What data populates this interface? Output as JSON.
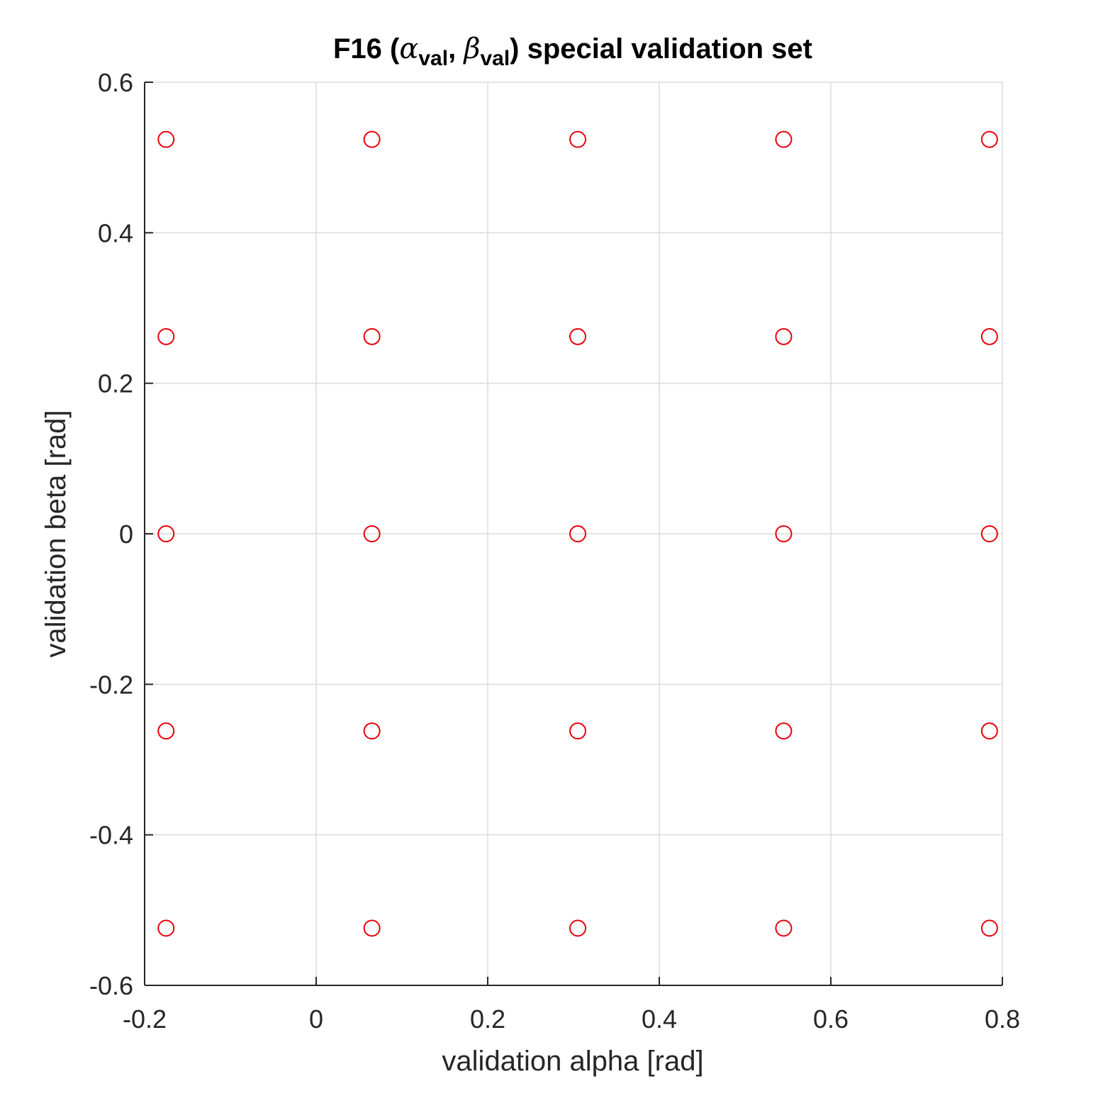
{
  "chart_data": {
    "type": "scatter",
    "title": {
      "prefix": "F16 (",
      "alpha": "α",
      "alpha_sub": "val",
      "sep": ", ",
      "beta": "β",
      "beta_sub": "val",
      "suffix": ") special validation set"
    },
    "xlabel": "validation alpha [rad]",
    "ylabel": "validation beta [rad]",
    "xlim": [
      -0.2,
      0.8
    ],
    "ylim": [
      -0.6,
      0.6
    ],
    "xticks": [
      -0.2,
      0,
      0.2,
      0.4,
      0.6,
      0.8
    ],
    "xtick_labels": [
      "-0.2",
      "0",
      "0.2",
      "0.4",
      "0.6",
      "0.8"
    ],
    "yticks": [
      -0.6,
      -0.4,
      -0.2,
      0,
      0.2,
      0.4,
      0.6
    ],
    "ytick_labels": [
      "-0.6",
      "-0.4",
      "-0.2",
      "0",
      "0.2",
      "0.4",
      "0.6"
    ],
    "grid": true,
    "marker": "circle-open",
    "marker_color": "#e8000b",
    "x_levels": [
      -0.175,
      0.065,
      0.305,
      0.545,
      0.785
    ],
    "y_levels": [
      0.524,
      0.262,
      0,
      -0.262,
      -0.524
    ]
  }
}
